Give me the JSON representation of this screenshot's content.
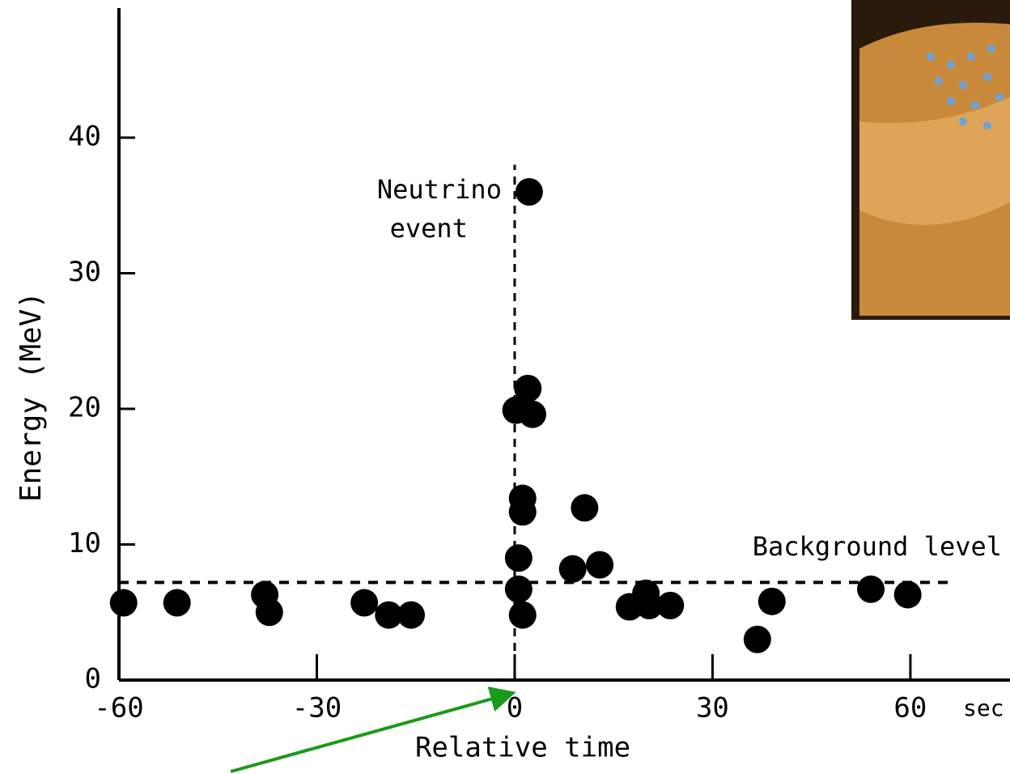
{
  "chart_data": {
    "type": "scatter",
    "x_label": "Relative time",
    "x_unit": "sec",
    "y_label": "Energy (MeV)",
    "xlim": [
      -60,
      74
    ],
    "xticks": [
      -60,
      -30,
      0,
      30,
      60
    ],
    "ylim": [
      0,
      50
    ],
    "yticks": [
      0,
      10,
      20,
      30,
      40
    ],
    "grid": false,
    "color": "#000000",
    "x": [
      -59.3,
      -51.2,
      -37.9,
      -37.2,
      -22.8,
      -19.1,
      -15.7,
      2.2,
      2.0,
      0.2,
      2.7,
      1.2,
      1.2,
      0.6,
      0.6,
      1.2,
      10.6,
      8.8,
      12.9,
      17.4,
      19.9,
      20.4,
      23.6,
      36.8,
      39.0,
      54.0,
      59.6
    ],
    "values": [
      5.7,
      5.7,
      6.3,
      5.0,
      5.7,
      4.8,
      4.8,
      36.0,
      21.5,
      19.9,
      19.6,
      13.4,
      12.4,
      9.0,
      6.7,
      4.8,
      12.7,
      8.2,
      8.5,
      5.4,
      6.4,
      5.5,
      5.5,
      3.0,
      5.8,
      6.7,
      6.3
    ],
    "event_line": {
      "label": [
        "Neutrino",
        "event"
      ],
      "x": 0,
      "ymax": 38
    },
    "background_line": {
      "label": "Background level",
      "y": 7.2,
      "xmax": 66.7
    }
  }
}
